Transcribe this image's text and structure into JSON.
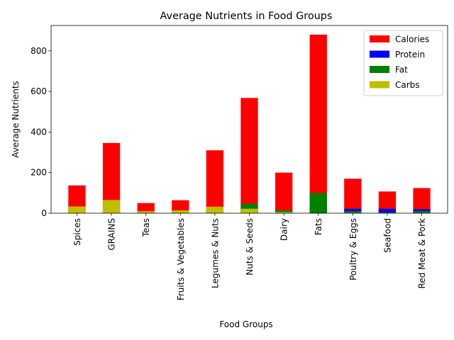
{
  "chart_data": {
    "type": "bar",
    "stacked": true,
    "title": "Average Nutrients in Food Groups",
    "xlabel": "Food Groups",
    "ylabel": "Average Nutrients",
    "ylim": [
      0,
      925
    ],
    "yticks": [
      0,
      200,
      400,
      600,
      800
    ],
    "grid": false,
    "legend_position": "top-right",
    "categories": [
      "Spices",
      "GRAINS",
      "Teas",
      "Fruits & Vegetables",
      "Legumes & Nuts",
      "Nuts & Seeds",
      "Dairy",
      "Fats",
      "Poultry & Eggs",
      "Seafood",
      "Red Meat & Pork"
    ],
    "series": [
      {
        "name": "Calories",
        "color": "#ff0000",
        "values": [
          137,
          346,
          50,
          64,
          310,
          568,
          200,
          880,
          170,
          107,
          124
        ]
      },
      {
        "name": "Protein",
        "color": "#0000ff",
        "values": [
          8,
          10,
          1,
          2,
          15,
          18,
          12,
          1,
          22,
          22,
          20
        ]
      },
      {
        "name": "Fat",
        "color": "#008000",
        "values": [
          8,
          4,
          0,
          1,
          3,
          47,
          14,
          100,
          10,
          4,
          11
        ]
      },
      {
        "name": "Carbs",
        "color": "#bfbf00",
        "values": [
          33,
          65,
          10,
          14,
          32,
          22,
          6,
          0,
          2,
          1,
          1
        ]
      }
    ]
  }
}
